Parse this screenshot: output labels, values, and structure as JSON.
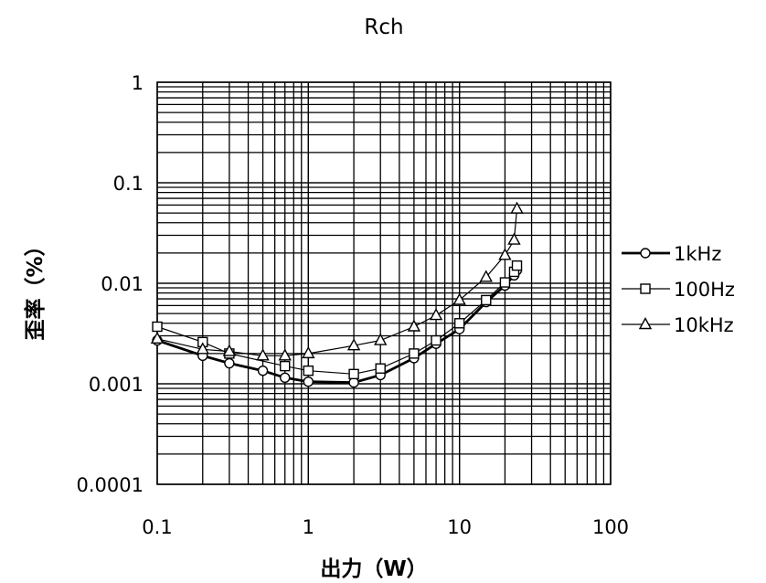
{
  "chart_data": {
    "type": "line",
    "title": "Rch",
    "xlabel": "出力（W）",
    "ylabel": "歪率（%）",
    "xscale": "log",
    "yscale": "log",
    "xlim": [
      0.1,
      100
    ],
    "ylim": [
      0.0001,
      1
    ],
    "x_ticks": [
      "0.1",
      "1",
      "10",
      "100"
    ],
    "y_ticks": [
      "1",
      "0.1",
      "0.01",
      "0.001",
      "0.0001"
    ],
    "grid": true,
    "legend_position": "right",
    "series": [
      {
        "name": "1kHz",
        "marker": "circle",
        "line_weight": "heavy",
        "x": [
          0.1,
          0.2,
          0.3,
          0.5,
          0.7,
          1,
          2,
          3,
          5,
          7,
          10,
          15,
          20,
          23,
          24
        ],
        "y": [
          0.0027,
          0.0019,
          0.0016,
          0.00135,
          0.00115,
          0.00105,
          0.00103,
          0.00122,
          0.0018,
          0.0025,
          0.0035,
          0.0065,
          0.0095,
          0.012,
          0.0135
        ]
      },
      {
        "name": "100Hz",
        "marker": "square",
        "line_weight": "normal",
        "x": [
          0.1,
          0.2,
          0.3,
          0.7,
          1,
          2,
          3,
          5,
          7,
          10,
          15,
          20,
          23,
          24
        ],
        "y": [
          0.0037,
          0.0026,
          0.002,
          0.0015,
          0.00135,
          0.00125,
          0.00142,
          0.002,
          0.0027,
          0.004,
          0.0068,
          0.0102,
          0.013,
          0.015
        ]
      },
      {
        "name": "10kHz",
        "marker": "triangle",
        "line_weight": "normal",
        "x": [
          0.1,
          0.2,
          0.3,
          0.5,
          0.7,
          1,
          2,
          3,
          5,
          7,
          10,
          15,
          20,
          23,
          24
        ],
        "y": [
          0.0028,
          0.0022,
          0.0021,
          0.0019,
          0.0019,
          0.002,
          0.0024,
          0.0027,
          0.0037,
          0.0048,
          0.0068,
          0.0115,
          0.019,
          0.027,
          0.055
        ]
      }
    ]
  }
}
